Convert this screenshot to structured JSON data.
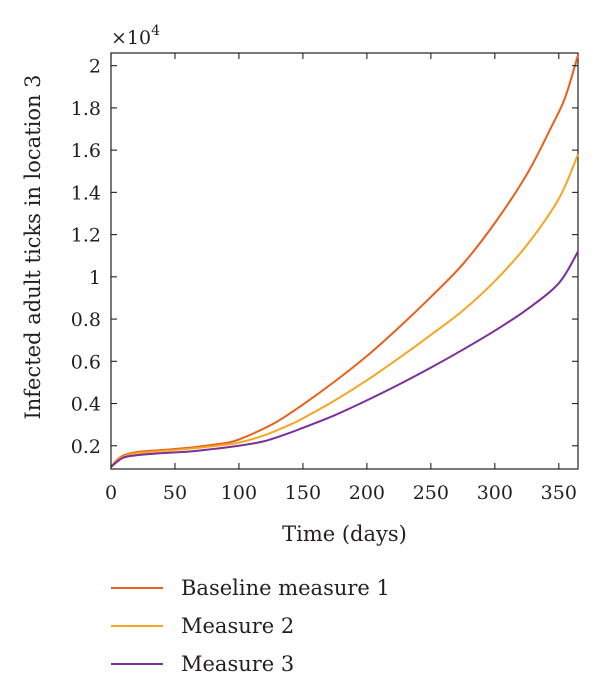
{
  "chart_data": {
    "type": "line",
    "xlabel": "Time (days)",
    "ylabel": "Infected adult ticks in location 3",
    "y_multiplier_label": "×10",
    "y_multiplier_exponent": "4",
    "xlim": [
      0,
      365
    ],
    "ylim": [
      0.09,
      2.06
    ],
    "x_ticks": [
      0,
      50,
      100,
      150,
      200,
      250,
      300,
      350
    ],
    "y_ticks": [
      0.2,
      0.4,
      0.6,
      0.8,
      1,
      1.2,
      1.4,
      1.6,
      1.8,
      2
    ],
    "x_tick_labels": [
      "0",
      "50",
      "100",
      "150",
      "200",
      "250",
      "300",
      "350"
    ],
    "y_tick_labels": [
      "0.2",
      "0.4",
      "0.6",
      "0.8",
      "1",
      "1.2",
      "1.4",
      "1.6",
      "1.8",
      "2"
    ],
    "grid": false,
    "legend_position": "below",
    "series": [
      {
        "name": "Baseline measure 1",
        "color": "#e8601c",
        "points": [
          [
            0,
            0.1
          ],
          [
            5,
            0.135
          ],
          [
            10,
            0.155
          ],
          [
            20,
            0.17
          ],
          [
            40,
            0.18
          ],
          [
            60,
            0.19
          ],
          [
            80,
            0.205
          ],
          [
            95,
            0.22
          ],
          [
            110,
            0.255
          ],
          [
            130,
            0.315
          ],
          [
            150,
            0.395
          ],
          [
            175,
            0.505
          ],
          [
            200,
            0.625
          ],
          [
            225,
            0.76
          ],
          [
            250,
            0.905
          ],
          [
            275,
            1.06
          ],
          [
            300,
            1.255
          ],
          [
            325,
            1.485
          ],
          [
            345,
            1.72
          ],
          [
            355,
            1.85
          ],
          [
            365,
            2.05
          ]
        ]
      },
      {
        "name": "Measure 2",
        "color": "#f5a623",
        "points": [
          [
            0,
            0.1
          ],
          [
            5,
            0.13
          ],
          [
            10,
            0.15
          ],
          [
            20,
            0.165
          ],
          [
            40,
            0.175
          ],
          [
            60,
            0.185
          ],
          [
            80,
            0.198
          ],
          [
            100,
            0.215
          ],
          [
            120,
            0.25
          ],
          [
            140,
            0.3
          ],
          [
            150,
            0.33
          ],
          [
            175,
            0.415
          ],
          [
            200,
            0.51
          ],
          [
            225,
            0.615
          ],
          [
            250,
            0.725
          ],
          [
            275,
            0.84
          ],
          [
            300,
            0.98
          ],
          [
            325,
            1.15
          ],
          [
            350,
            1.37
          ],
          [
            365,
            1.58
          ]
        ]
      },
      {
        "name": "Measure 3",
        "color": "#7b2f9b",
        "points": [
          [
            0,
            0.1
          ],
          [
            5,
            0.125
          ],
          [
            10,
            0.145
          ],
          [
            20,
            0.155
          ],
          [
            40,
            0.165
          ],
          [
            60,
            0.172
          ],
          [
            80,
            0.185
          ],
          [
            100,
            0.2
          ],
          [
            120,
            0.222
          ],
          [
            140,
            0.262
          ],
          [
            150,
            0.285
          ],
          [
            175,
            0.345
          ],
          [
            200,
            0.415
          ],
          [
            225,
            0.49
          ],
          [
            250,
            0.57
          ],
          [
            275,
            0.655
          ],
          [
            300,
            0.745
          ],
          [
            325,
            0.845
          ],
          [
            350,
            0.97
          ],
          [
            365,
            1.12
          ]
        ]
      }
    ]
  }
}
